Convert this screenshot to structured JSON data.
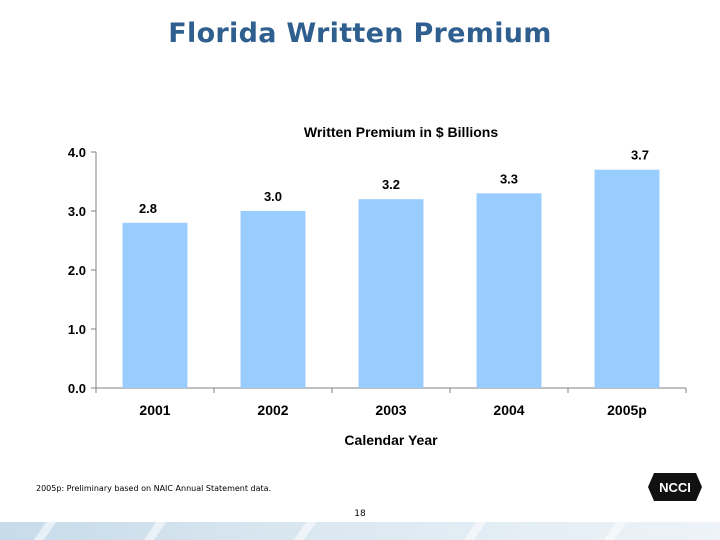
{
  "slide": {
    "title": "Florida Written Premium",
    "footnote": "2005p: Preliminary based on NAIC Annual Statement data.",
    "page_number": "18",
    "logo_text": "NCCI"
  },
  "colors": {
    "bar": "#99ccff",
    "title": "#2e5f8f",
    "axis": "#808080",
    "band": "#c8dbe9"
  },
  "chart_data": {
    "type": "bar",
    "title": "Written Premium in $ Billions",
    "xlabel": "Calendar Year",
    "ylabel": "",
    "categories": [
      "2001",
      "2002",
      "2003",
      "2004",
      "2005p"
    ],
    "values": [
      2.8,
      3.0,
      3.2,
      3.3,
      3.7
    ],
    "value_labels": [
      "2.8",
      "3.0",
      "3.2",
      "3.3",
      "3.7"
    ],
    "ylim": [
      0,
      4.0
    ],
    "yticks": [
      "0.0",
      "1.0",
      "2.0",
      "3.0",
      "4.0"
    ],
    "grid": false,
    "legend": "none"
  }
}
